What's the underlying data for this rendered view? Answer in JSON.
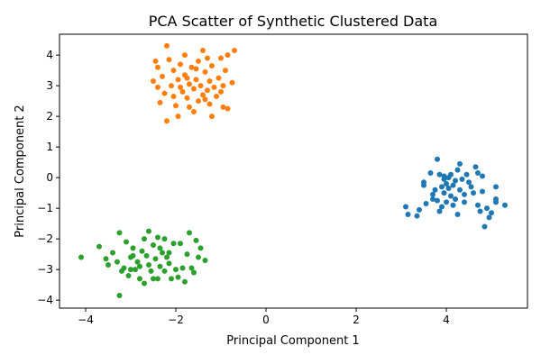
{
  "chart_data": {
    "type": "scatter",
    "title": "PCA Scatter of Synthetic Clustered Data",
    "xlabel": "Principal Component 1",
    "ylabel": "Principal Component 2",
    "xlim": [
      -4.58,
      5.8
    ],
    "ylim": [
      -4.26,
      4.68
    ],
    "xticks": [
      -4,
      -2,
      0,
      2,
      4
    ],
    "yticks": [
      -4,
      -3,
      -2,
      -1,
      0,
      1,
      2,
      3,
      4
    ],
    "grid": false,
    "series": [
      {
        "color": "#1f77b4",
        "points": [
          [
            3.1,
            -0.95
          ],
          [
            3.15,
            -1.2
          ],
          [
            3.35,
            -1.25
          ],
          [
            3.4,
            -1.05
          ],
          [
            3.5,
            -0.15
          ],
          [
            3.5,
            -0.25
          ],
          [
            3.55,
            -0.85
          ],
          [
            3.65,
            0.15
          ],
          [
            3.7,
            -0.55
          ],
          [
            3.75,
            -0.4
          ],
          [
            3.8,
            0.6
          ],
          [
            3.8,
            -0.75
          ],
          [
            3.85,
            0.1
          ],
          [
            3.85,
            -1.1
          ],
          [
            3.9,
            -0.3
          ],
          [
            3.9,
            -0.95
          ],
          [
            3.95,
            0.05
          ],
          [
            3.95,
            -0.5
          ],
          [
            4.0,
            -0.2
          ],
          [
            4.0,
            -0.8
          ],
          [
            4.05,
            0.0
          ],
          [
            4.05,
            -0.35
          ],
          [
            4.1,
            -0.6
          ],
          [
            4.1,
            0.1
          ],
          [
            4.15,
            -0.25
          ],
          [
            4.2,
            -0.1
          ],
          [
            4.2,
            -0.7
          ],
          [
            4.25,
            0.25
          ],
          [
            4.25,
            -1.2
          ],
          [
            4.3,
            0.45
          ],
          [
            4.3,
            -0.4
          ],
          [
            4.35,
            -0.05
          ],
          [
            4.4,
            -0.55
          ],
          [
            4.45,
            0.1
          ],
          [
            4.5,
            -0.15
          ],
          [
            4.55,
            -0.3
          ],
          [
            4.6,
            -0.5
          ],
          [
            4.65,
            0.35
          ],
          [
            4.7,
            -0.9
          ],
          [
            4.7,
            0.15
          ],
          [
            4.75,
            -1.1
          ],
          [
            4.8,
            -0.45
          ],
          [
            4.8,
            0.05
          ],
          [
            4.85,
            -1.6
          ],
          [
            4.9,
            -1.0
          ],
          [
            4.95,
            -1.3
          ],
          [
            5.0,
            -1.15
          ],
          [
            5.1,
            -0.3
          ],
          [
            5.1,
            -0.7
          ],
          [
            5.1,
            -0.8
          ],
          [
            5.3,
            -0.9
          ],
          [
            3.95,
            -0.05
          ],
          [
            4.15,
            -0.9
          ],
          [
            3.7,
            -0.7
          ],
          [
            4.4,
            -0.8
          ]
        ]
      },
      {
        "color": "#ff7f0e",
        "points": [
          [
            -2.2,
            1.85
          ],
          [
            -2.2,
            4.3
          ],
          [
            -2.5,
            3.15
          ],
          [
            -2.45,
            3.8
          ],
          [
            -2.4,
            2.95
          ],
          [
            -2.4,
            3.6
          ],
          [
            -2.35,
            2.45
          ],
          [
            -2.3,
            3.3
          ],
          [
            -2.25,
            2.75
          ],
          [
            -2.15,
            3.85
          ],
          [
            -2.1,
            3.0
          ],
          [
            -2.05,
            3.5
          ],
          [
            -2.0,
            2.35
          ],
          [
            -1.95,
            3.2
          ],
          [
            -1.95,
            2.0
          ],
          [
            -1.9,
            3.7
          ],
          [
            -1.85,
            2.8
          ],
          [
            -1.8,
            4.0
          ],
          [
            -1.8,
            3.35
          ],
          [
            -1.75,
            2.6
          ],
          [
            -1.7,
            3.05
          ],
          [
            -1.7,
            2.3
          ],
          [
            -1.65,
            3.6
          ],
          [
            -1.6,
            2.15
          ],
          [
            -1.6,
            2.9
          ],
          [
            -1.55,
            3.2
          ],
          [
            -1.5,
            3.8
          ],
          [
            -1.5,
            2.5
          ],
          [
            -1.45,
            3.0
          ],
          [
            -1.4,
            4.15
          ],
          [
            -1.4,
            2.7
          ],
          [
            -1.35,
            3.45
          ],
          [
            -1.3,
            2.85
          ],
          [
            -1.3,
            3.9
          ],
          [
            -1.25,
            3.15
          ],
          [
            -1.25,
            2.4
          ],
          [
            -1.2,
            2.0
          ],
          [
            -1.2,
            3.65
          ],
          [
            -1.15,
            2.95
          ],
          [
            -1.1,
            2.65
          ],
          [
            -1.05,
            3.25
          ],
          [
            -1.0,
            3.9
          ],
          [
            -0.95,
            3.0
          ],
          [
            -0.95,
            2.3
          ],
          [
            -0.9,
            3.5
          ],
          [
            -0.85,
            4.0
          ],
          [
            -0.85,
            2.25
          ],
          [
            -0.75,
            3.1
          ],
          [
            -0.7,
            4.15
          ],
          [
            -1.55,
            3.55
          ],
          [
            -1.75,
            3.25
          ],
          [
            -2.05,
            2.65
          ],
          [
            -1.35,
            2.55
          ],
          [
            -1.9,
            2.95
          ],
          [
            -1.0,
            2.8
          ]
        ]
      },
      {
        "color": "#2ca02c",
        "points": [
          [
            -4.1,
            -2.6
          ],
          [
            -3.7,
            -2.25
          ],
          [
            -3.55,
            -2.65
          ],
          [
            -3.5,
            -2.85
          ],
          [
            -3.4,
            -2.45
          ],
          [
            -3.3,
            -2.75
          ],
          [
            -3.25,
            -1.8
          ],
          [
            -3.25,
            -3.85
          ],
          [
            -3.2,
            -3.05
          ],
          [
            -3.15,
            -2.95
          ],
          [
            -3.1,
            -2.1
          ],
          [
            -3.05,
            -3.2
          ],
          [
            -3.0,
            -2.6
          ],
          [
            -2.95,
            -2.3
          ],
          [
            -2.9,
            -3.0
          ],
          [
            -2.85,
            -2.75
          ],
          [
            -2.8,
            -3.3
          ],
          [
            -2.75,
            -2.4
          ],
          [
            -2.7,
            -3.45
          ],
          [
            -2.65,
            -2.55
          ],
          [
            -2.6,
            -2.85
          ],
          [
            -2.6,
            -1.75
          ],
          [
            -2.55,
            -3.05
          ],
          [
            -2.5,
            -2.2
          ],
          [
            -2.45,
            -2.65
          ],
          [
            -2.4,
            -3.3
          ],
          [
            -2.4,
            -1.95
          ],
          [
            -2.35,
            -2.9
          ],
          [
            -2.3,
            -2.45
          ],
          [
            -2.25,
            -3.05
          ],
          [
            -2.25,
            -2.0
          ],
          [
            -2.2,
            -2.6
          ],
          [
            -2.15,
            -2.8
          ],
          [
            -2.1,
            -3.3
          ],
          [
            -2.05,
            -2.15
          ],
          [
            -2.0,
            -3.0
          ],
          [
            -1.95,
            -3.25
          ],
          [
            -1.9,
            -2.15
          ],
          [
            -1.85,
            -2.95
          ],
          [
            -1.8,
            -3.4
          ],
          [
            -1.75,
            -2.5
          ],
          [
            -1.7,
            -1.8
          ],
          [
            -1.65,
            -2.95
          ],
          [
            -1.6,
            -3.1
          ],
          [
            -1.55,
            -2.05
          ],
          [
            -1.5,
            -2.6
          ],
          [
            -1.45,
            -2.3
          ],
          [
            -1.35,
            -2.7
          ],
          [
            -2.7,
            -2.0
          ],
          [
            -2.8,
            -2.9
          ],
          [
            -3.0,
            -3.0
          ],
          [
            -2.5,
            -3.3
          ],
          [
            -2.35,
            -2.3
          ],
          [
            -2.95,
            -2.55
          ],
          [
            -2.15,
            -2.45
          ]
        ]
      }
    ]
  }
}
